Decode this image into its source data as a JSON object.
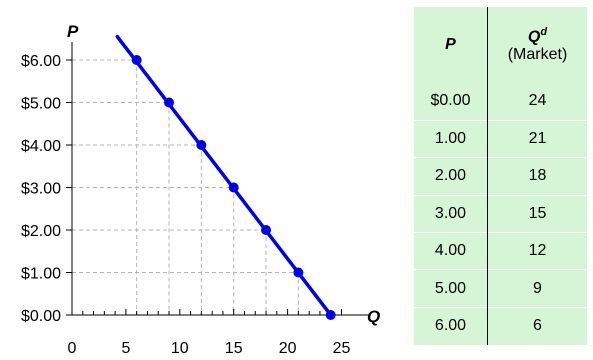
{
  "chart_data": {
    "type": "line",
    "xlabel": "Q",
    "ylabel": "P",
    "x_ticks": [
      0,
      5,
      10,
      15,
      20,
      25
    ],
    "y_ticks": [
      "$0.00",
      "$1.00",
      "$2.00",
      "$3.00",
      "$4.00",
      "$5.00",
      "$6.00"
    ],
    "y_tick_values": [
      0,
      1,
      2,
      3,
      4,
      5,
      6
    ],
    "xlim": [
      0,
      25
    ],
    "ylim": [
      0,
      6
    ],
    "x_minor_step": 1,
    "line_extent": {
      "x_start": 4.2,
      "y_start": 6.55,
      "x_end": 24,
      "y_end": 0
    },
    "series": [
      {
        "values": [
          {
            "x": 6,
            "y": 6
          },
          {
            "x": 9,
            "y": 5
          },
          {
            "x": 12,
            "y": 4
          },
          {
            "x": 15,
            "y": 3
          },
          {
            "x": 18,
            "y": 2
          },
          {
            "x": 21,
            "y": 1
          },
          {
            "x": 24,
            "y": 0
          }
        ]
      }
    ],
    "line_color": "#0000e6",
    "guide_color": "#b4b4b4",
    "grid": true
  },
  "table": {
    "header_p": "P",
    "header_q": "Q",
    "header_q_sup": "d",
    "header_q_sub": "(Market)",
    "rows": [
      {
        "p": "$0.00",
        "q": "24"
      },
      {
        "p": "1.00",
        "q": "21"
      },
      {
        "p": "2.00",
        "q": "18"
      },
      {
        "p": "3.00",
        "q": "15"
      },
      {
        "p": "4.00",
        "q": "12"
      },
      {
        "p": "5.00",
        "q": "9"
      },
      {
        "p": "6.00",
        "q": "6"
      }
    ],
    "background": "#d6f5d6"
  }
}
